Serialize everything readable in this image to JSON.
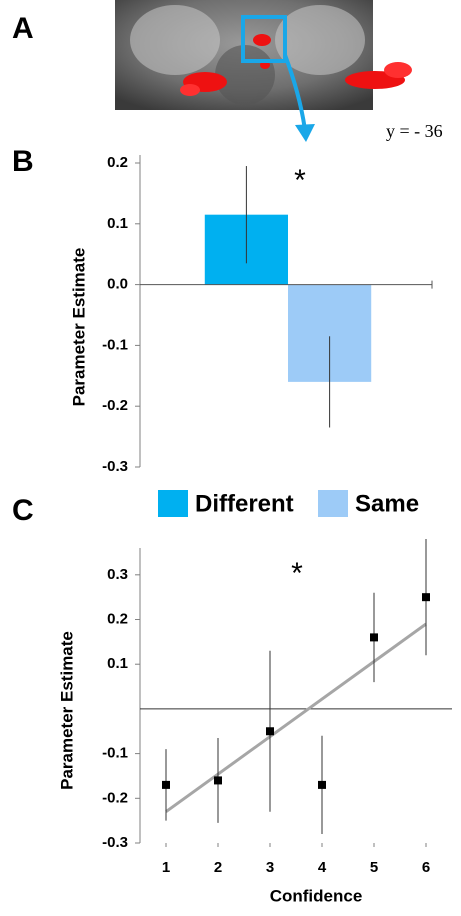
{
  "image_panel": {
    "label": "A",
    "caption": "y = - 36"
  },
  "chart_data": [
    {
      "type": "bar",
      "panel_label": "B",
      "ylabel": "Parameter Estimate",
      "annotation": "*",
      "ylim": [
        -0.3,
        0.2
      ],
      "yticks": [
        0.2,
        0.1,
        {
          "value": 0,
          "label": "0.0"
        },
        -0.1,
        -0.2,
        -0.3
      ],
      "series": [
        {
          "name": "Different",
          "color": "#00b0f0",
          "values": [
            0.115
          ],
          "errors": [
            0.08
          ]
        },
        {
          "name": "Same",
          "color": "#9dcbf7",
          "values": [
            -0.16
          ],
          "errors": [
            0.075
          ]
        }
      ]
    },
    {
      "type": "scatter",
      "panel_label": "C",
      "xlabel": "Confidence",
      "ylabel": "Parameter Estimate",
      "annotation": "*",
      "x": [
        1,
        2,
        3,
        4,
        5,
        6
      ],
      "values": [
        -0.17,
        -0.16,
        -0.05,
        -0.17,
        0.16,
        0.25
      ],
      "errors": [
        0.08,
        0.095,
        0.18,
        0.11,
        0.1,
        0.13
      ],
      "color": "#000000",
      "trend": {
        "x": [
          1,
          6
        ],
        "values": [
          -0.23,
          0.19
        ],
        "color": "#a6a6a6"
      },
      "xlim": [
        0.5,
        6.5
      ],
      "ylim": [
        -0.3,
        0.36
      ],
      "xticks": [
        1,
        2,
        3,
        4,
        5,
        6
      ],
      "yticks": [
        0.3,
        0.2,
        0.1,
        -0.1,
        -0.2,
        -0.3
      ]
    }
  ]
}
